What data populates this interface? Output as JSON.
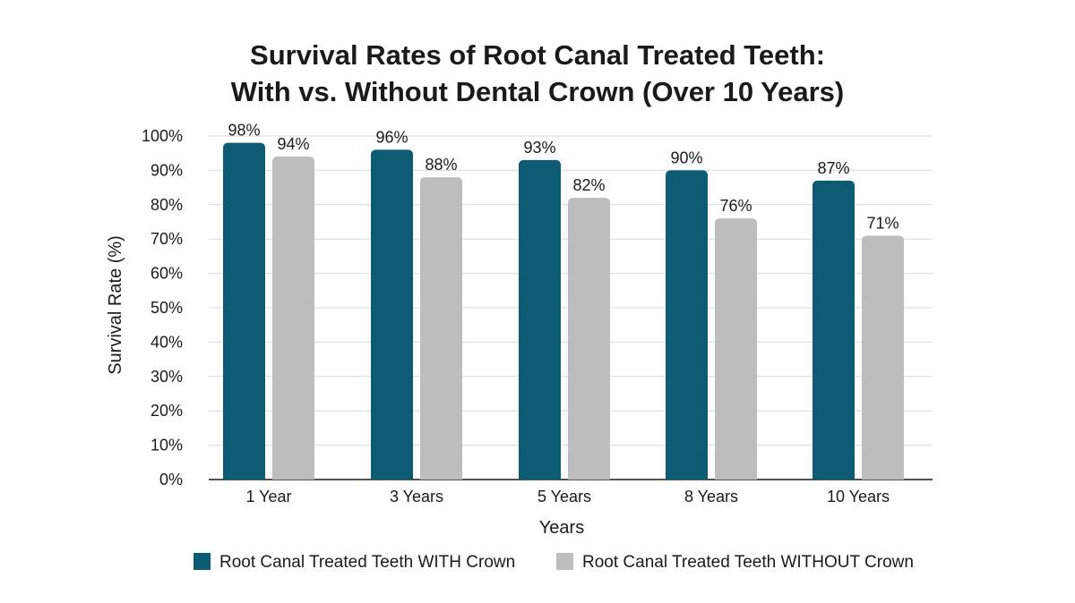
{
  "chart_data": {
    "type": "bar",
    "title": [
      "Survival Rates of Root Canal Treated Teeth:",
      "With vs. Without Dental Crown (Over 10 Years)"
    ],
    "xlabel": "Years",
    "ylabel": "Survival Rate (%)",
    "ylim": [
      0,
      100
    ],
    "ytick_step": 10,
    "ytick_suffix": "%",
    "value_suffix": "%",
    "grid": true,
    "legend_position": "bottom",
    "categories": [
      "1 Year",
      "3 Years",
      "5 Years",
      "8 Years",
      "10 Years"
    ],
    "series": [
      {
        "name": "Root Canal Treated Teeth WITH Crown",
        "color": "#0d5a73",
        "values": [
          98,
          96,
          93,
          90,
          87
        ]
      },
      {
        "name": "Root Canal Treated Teeth WITHOUT Crown",
        "color": "#bdbdbd",
        "values": [
          94,
          88,
          82,
          76,
          71
        ]
      }
    ]
  }
}
